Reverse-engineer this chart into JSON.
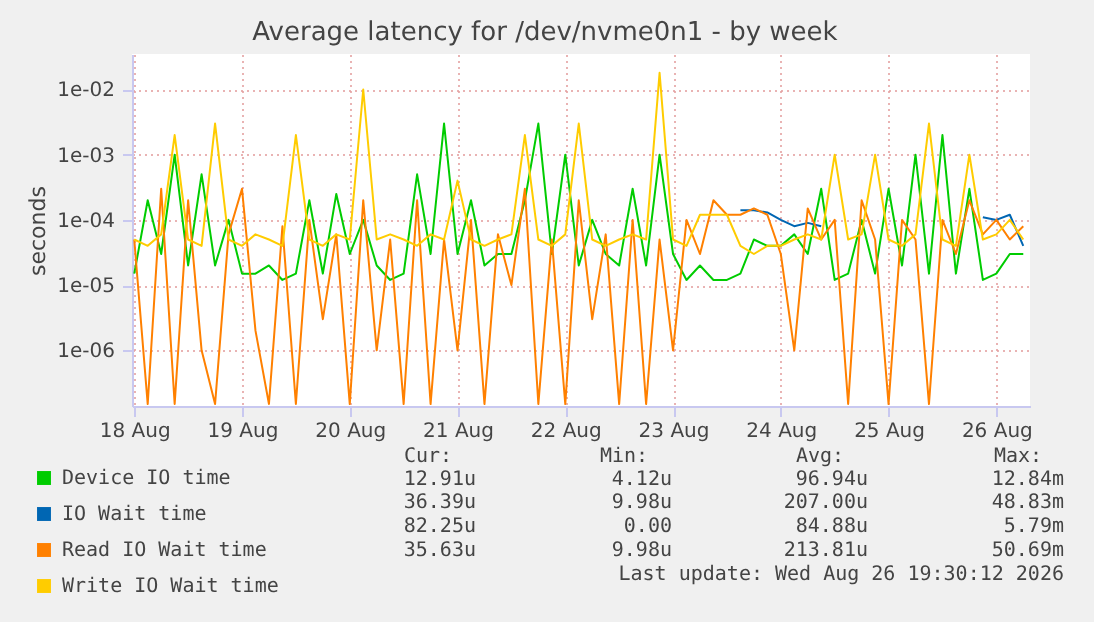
{
  "chart_data": {
    "type": "line",
    "title": "Average latency for /dev/nvme0n1 - by week",
    "ylabel": "seconds",
    "log": "y",
    "grid": true,
    "legend": "bottom left",
    "x": [
      "2026-08-18T12:00",
      "2026-08-18T15:00",
      "2026-08-18T18:00",
      "2026-08-18T21:00",
      "2026-08-19T00:00",
      "2026-08-19T03:00",
      "2026-08-19T06:00",
      "2026-08-19T09:00",
      "2026-08-19T12:00",
      "2026-08-19T15:00",
      "2026-08-19T18:00",
      "2026-08-19T21:00",
      "2026-08-20T00:00",
      "2026-08-20T03:00",
      "2026-08-20T06:00",
      "2026-08-20T09:00",
      "2026-08-20T12:00",
      "2026-08-20T15:00",
      "2026-08-20T18:00",
      "2026-08-20T21:00",
      "2026-08-21T00:00",
      "2026-08-21T03:00",
      "2026-08-21T06:00",
      "2026-08-21T09:00",
      "2026-08-21T12:00",
      "2026-08-21T15:00",
      "2026-08-21T18:00",
      "2026-08-21T21:00",
      "2026-08-22T00:00",
      "2026-08-22T03:00",
      "2026-08-22T06:00",
      "2026-08-22T09:00",
      "2026-08-22T12:00",
      "2026-08-22T15:00",
      "2026-08-22T18:00",
      "2026-08-22T21:00",
      "2026-08-23T00:00",
      "2026-08-23T03:00",
      "2026-08-23T06:00",
      "2026-08-23T09:00",
      "2026-08-23T12:00",
      "2026-08-23T15:00",
      "2026-08-23T18:00",
      "2026-08-23T21:00",
      "2026-08-24T00:00",
      "2026-08-24T03:00",
      "2026-08-24T06:00",
      "2026-08-24T09:00",
      "2026-08-24T12:00",
      "2026-08-24T15:00",
      "2026-08-24T18:00",
      "2026-08-24T21:00",
      "2026-08-25T00:00",
      "2026-08-25T03:00",
      "2026-08-25T06:00",
      "2026-08-25T09:00",
      "2026-08-25T12:00",
      "2026-08-25T15:00",
      "2026-08-25T18:00",
      "2026-08-25T21:00",
      "2026-08-26T00:00",
      "2026-08-26T03:00",
      "2026-08-26T06:00",
      "2026-08-26T09:00",
      "2026-08-26T12:00",
      "2026-08-26T15:00",
      "2026-08-26T18:00"
    ],
    "series": [
      {
        "name": "Device IO time",
        "color": "#00cc00",
        "values": [
          1.5e-05,
          0.0002,
          3e-05,
          0.001,
          2e-05,
          0.0005,
          2e-05,
          0.0001,
          1.5e-05,
          1.5e-05,
          2e-05,
          1.2e-05,
          1.5e-05,
          0.0002,
          1.5e-05,
          0.00025,
          3e-05,
          0.0001,
          2e-05,
          1.2e-05,
          1.5e-05,
          0.0005,
          3e-05,
          0.003,
          3e-05,
          0.0002,
          2e-05,
          3e-05,
          3e-05,
          0.0002,
          0.003,
          3e-05,
          0.001,
          2e-05,
          0.0001,
          3e-05,
          2e-05,
          0.0003,
          2e-05,
          0.001,
          3e-05,
          1.2e-05,
          2e-05,
          1.2e-05,
          1.2e-05,
          1.5e-05,
          5e-05,
          4e-05,
          4e-05,
          6e-05,
          3e-05,
          0.0003,
          1.2e-05,
          1.5e-05,
          0.0001,
          1.5e-05,
          0.0003,
          2e-05,
          0.001,
          1.5e-05,
          0.002,
          1.5e-05,
          0.0003,
          1.2e-05,
          1.5e-05,
          3e-05,
          3e-05
        ]
      },
      {
        "name": "IO Wait time",
        "color": "#0066b3",
        "values": [
          null,
          null,
          null,
          null,
          null,
          null,
          null,
          null,
          null,
          null,
          null,
          null,
          null,
          null,
          null,
          null,
          null,
          null,
          null,
          null,
          null,
          null,
          null,
          null,
          null,
          null,
          null,
          null,
          null,
          null,
          null,
          null,
          null,
          null,
          null,
          null,
          null,
          null,
          null,
          null,
          null,
          null,
          null,
          null,
          null,
          0.00014,
          0.00014,
          0.00013,
          0.0001,
          8e-05,
          9e-05,
          8e-05,
          null,
          null,
          null,
          null,
          null,
          null,
          null,
          null,
          null,
          null,
          null,
          0.00011,
          0.0001,
          0.00012,
          4e-05
        ]
      },
      {
        "name": "Read IO Wait time",
        "color": "#ff8000",
        "values": [
          5e-05,
          1.5e-07,
          0.0003,
          1.5e-07,
          0.0002,
          1e-06,
          1.5e-07,
          6e-05,
          0.0003,
          2e-06,
          1.5e-07,
          8e-05,
          1.5e-07,
          0.0001,
          3e-06,
          6e-05,
          1.5e-07,
          0.0002,
          1e-06,
          5e-05,
          1.5e-07,
          0.0002,
          1.5e-07,
          5e-05,
          1e-06,
          0.0001,
          1.5e-07,
          6e-05,
          1e-05,
          0.0003,
          1.5e-07,
          5e-05,
          1.5e-07,
          0.0002,
          3e-06,
          6e-05,
          1.5e-07,
          0.0001,
          1.5e-07,
          5e-05,
          1e-06,
          0.0001,
          3e-05,
          0.0002,
          0.00012,
          0.00012,
          0.00015,
          0.00012,
          3e-05,
          1e-06,
          0.00015,
          5e-05,
          0.0001,
          1.5e-07,
          0.0002,
          5e-05,
          1.5e-07,
          0.0001,
          5e-05,
          1.5e-07,
          0.0001,
          3e-05,
          0.0002,
          6e-05,
          0.0001,
          5e-05,
          8e-05
        ]
      },
      {
        "name": "Write IO Wait time",
        "color": "#ffcc00",
        "values": [
          5e-05,
          4e-05,
          6e-05,
          0.002,
          5e-05,
          4e-05,
          0.003,
          5e-05,
          4e-05,
          6e-05,
          5e-05,
          4e-05,
          0.002,
          5e-05,
          4e-05,
          6e-05,
          5e-05,
          0.01,
          5e-05,
          6e-05,
          5e-05,
          4e-05,
          6e-05,
          5e-05,
          0.0004,
          5e-05,
          4e-05,
          5e-05,
          6e-05,
          0.002,
          5e-05,
          4e-05,
          6e-05,
          0.003,
          5e-05,
          4e-05,
          5e-05,
          6e-05,
          5e-05,
          0.018,
          5e-05,
          4e-05,
          0.00012,
          0.00012,
          0.00012,
          4e-05,
          3e-05,
          4e-05,
          4e-05,
          5e-05,
          6e-05,
          5e-05,
          0.001,
          5e-05,
          6e-05,
          0.001,
          5e-05,
          4e-05,
          6e-05,
          0.003,
          5e-05,
          4e-05,
          0.001,
          5e-05,
          6e-05,
          0.0001,
          5e-05
        ]
      }
    ],
    "xlim": [
      "2026-08-18T11:30",
      "2026-08-26T19:30"
    ],
    "xticks": [
      {
        "value": "2026-08-18T12:00",
        "label": "18 Aug"
      },
      {
        "value": "2026-08-19T12:00",
        "label": "19 Aug"
      },
      {
        "value": "2026-08-20T12:00",
        "label": "20 Aug"
      },
      {
        "value": "2026-08-21T12:00",
        "label": "21 Aug"
      },
      {
        "value": "2026-08-22T12:00",
        "label": "22 Aug"
      },
      {
        "value": "2026-08-23T12:00",
        "label": "23 Aug"
      },
      {
        "value": "2026-08-24T12:00",
        "label": "24 Aug"
      },
      {
        "value": "2026-08-25T12:00",
        "label": "25 Aug"
      },
      {
        "value": "2026-08-26T12:00",
        "label": "26 Aug"
      }
    ],
    "ylim": [
      1.4e-07,
      0.035
    ],
    "yticks": [
      {
        "value": 1e-06,
        "label": "1e-06"
      },
      {
        "value": 1e-05,
        "label": "1e-05"
      },
      {
        "value": 0.0001,
        "label": "1e-04"
      },
      {
        "value": 0.001,
        "label": "1e-03"
      },
      {
        "value": 0.01,
        "label": "1e-02"
      }
    ],
    "annotations": [
      "Cur:",
      "Min:",
      "Avg:",
      "Max:",
      "12.91u",
      "4.12u",
      "96.94u",
      "12.84m",
      "36.39u",
      "9.98u",
      "207.00u",
      "48.83m",
      "82.25u",
      "0.00",
      "84.88u",
      "5.79m",
      "35.63u",
      "9.98u",
      "213.81u",
      "50.69m",
      "Last update: Wed Aug 26 19:30:12 2026"
    ]
  }
}
